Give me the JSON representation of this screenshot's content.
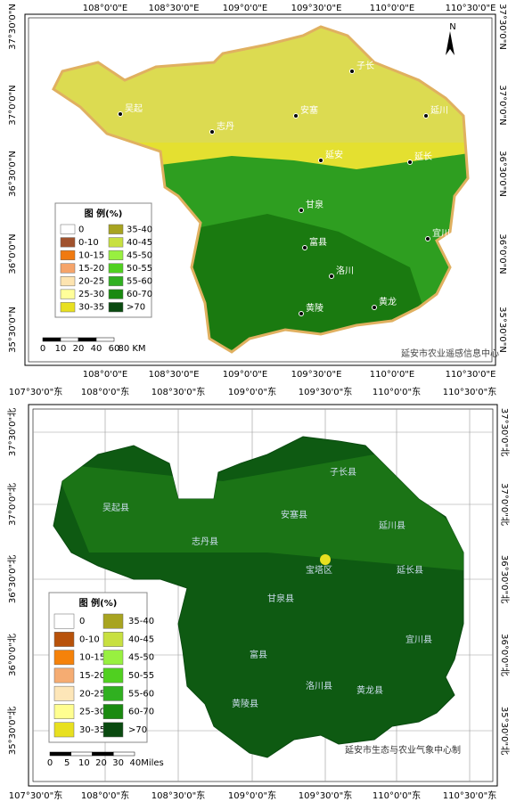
{
  "maps": [
    {
      "longitude_labels": [
        "108°0'0\"E",
        "108°30'0\"E",
        "109°0'0\"E",
        "109°30'0\"E",
        "110°0'0\"E",
        "110°30'0\"E"
      ],
      "latitude_labels": [
        "37°30'0\"N",
        "37°0'0\"N",
        "36°30'0\"N",
        "36°0'0\"N",
        "35°30'0\"N"
      ],
      "legend": {
        "title": "图 例(%)",
        "items": [
          {
            "label": "0",
            "color": "#ffffff"
          },
          {
            "label": "0-10",
            "color": "#a0522d"
          },
          {
            "label": "10-15",
            "color": "#f07a10"
          },
          {
            "label": "15-20",
            "color": "#f5a46a"
          },
          {
            "label": "20-25",
            "color": "#fde4b0"
          },
          {
            "label": "25-30",
            "color": "#fffe9a"
          },
          {
            "label": "30-35",
            "color": "#e8e020"
          },
          {
            "label": "35-40",
            "color": "#a8a420"
          },
          {
            "label": "40-45",
            "color": "#c8e040"
          },
          {
            "label": "45-50",
            "color": "#98f040"
          },
          {
            "label": "50-55",
            "color": "#50d020"
          },
          {
            "label": "55-60",
            "color": "#30b020"
          },
          {
            "label": "60-70",
            "color": "#1a8a10"
          },
          {
            "label": ">70",
            "color": "#0a4a10"
          }
        ]
      },
      "scale_labels": [
        "0",
        "10",
        "20",
        "40",
        "60",
        "80 KM"
      ],
      "north": "N",
      "credit": "延安市农业遥感信息中心",
      "places": [
        "吴起",
        "志丹",
        "安塞",
        "子长",
        "延川",
        "延安",
        "延长",
        "甘泉",
        "富县",
        "宜川",
        "洛川",
        "黄陵",
        "黄龙"
      ]
    },
    {
      "longitude_labels": [
        "107°30'0\"东",
        "108°0'0\"东",
        "108°30'0\"东",
        "109°0'0\"东",
        "109°30'0\"东",
        "110°0'0\"东",
        "110°30'0\"东"
      ],
      "latitude_labels": [
        "37°30'0\"北",
        "37°0'0\"北",
        "36°30'0\"北",
        "36°0'0\"北",
        "35°30'0\"北"
      ],
      "legend": {
        "title": "图 例(%)",
        "items": [
          {
            "label": "0",
            "color": "#ffffff"
          },
          {
            "label": "0-10",
            "color": "#b8520a"
          },
          {
            "label": "10-15",
            "color": "#f5820a"
          },
          {
            "label": "15-20",
            "color": "#f5ac72"
          },
          {
            "label": "20-25",
            "color": "#fde6b8"
          },
          {
            "label": "25-30",
            "color": "#fffe90"
          },
          {
            "label": "30-35",
            "color": "#e8e020"
          },
          {
            "label": "35-40",
            "color": "#a8a420"
          },
          {
            "label": "40-45",
            "color": "#c8e040"
          },
          {
            "label": "45-50",
            "color": "#98f040"
          },
          {
            "label": "50-55",
            "color": "#50d020"
          },
          {
            "label": "55-60",
            "color": "#30b020"
          },
          {
            "label": "60-70",
            "color": "#1a8a10"
          },
          {
            "label": ">70",
            "color": "#0a4a10"
          }
        ]
      },
      "scale_labels": [
        "0",
        "5",
        "10",
        "20",
        "30",
        "40",
        "Miles"
      ],
      "credit": "延安市生态与农业气象中心制",
      "places": [
        "吴起县",
        "志丹县",
        "安塞县",
        "子长县",
        "延川县",
        "宝塔区",
        "延长县",
        "甘泉县",
        "富县",
        "宜川县",
        "洛川县",
        "黄陵县",
        "黄龙县"
      ]
    }
  ]
}
